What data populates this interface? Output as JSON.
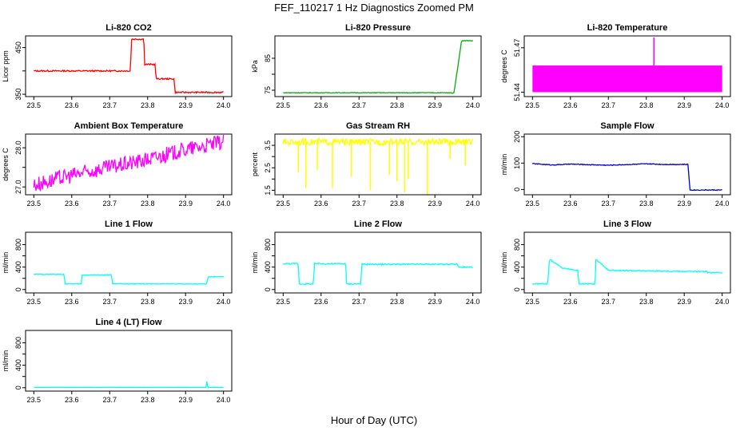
{
  "figure": {
    "title": "FEF_110217  1 Hz Diagnostics Zoomed PM",
    "xlabel": "Hour of Day (UTC)"
  },
  "chart_data": [
    {
      "type": "line",
      "title": "Li-820 CO2",
      "ylabel": "Licor ppm",
      "color": "#ff0000",
      "xlim": [
        23.5,
        24.0
      ],
      "ylim": [
        345,
        475
      ],
      "xticks": [
        "23.5",
        "23.6",
        "23.7",
        "23.8",
        "23.9",
        "24.0"
      ],
      "yticks": [
        350,
        400,
        450
      ],
      "ytick_labels": [
        "350",
        "",
        "450"
      ],
      "x": [
        23.5,
        23.755,
        23.757,
        23.79,
        23.792,
        23.82,
        23.822,
        23.87,
        23.872,
        24.0
      ],
      "y": [
        400,
        400,
        468,
        468,
        414,
        414,
        383,
        383,
        354,
        354
      ],
      "noise": 1.5
    },
    {
      "type": "line",
      "title": "Li-820 Pressure",
      "ylabel": "kPa",
      "color": "#00b000",
      "xlim": [
        23.5,
        24.0
      ],
      "ylim": [
        73,
        92
      ],
      "xticks": [
        "23.5",
        "23.6",
        "23.7",
        "23.8",
        "23.9",
        "24.0"
      ],
      "yticks": [
        75,
        80,
        85
      ],
      "ytick_labels": [
        "75",
        "",
        "85"
      ],
      "x": [
        23.5,
        23.93,
        23.95,
        23.96,
        23.965,
        23.97,
        24.0
      ],
      "y": [
        74.2,
        74.2,
        74.1,
        82,
        86,
        90.5,
        90.5
      ],
      "noise": 0.1
    },
    {
      "type": "band",
      "title": "Li-820 Temperature",
      "ylabel": "degrees C",
      "color": "#ff00ff",
      "xlim": [
        23.5,
        24.0
      ],
      "ylim": [
        51.437,
        51.478
      ],
      "xticks": [
        "23.5",
        "23.6",
        "23.7",
        "23.8",
        "23.9",
        "24.0"
      ],
      "yticks": [
        51.44,
        51.47
      ],
      "ytick_labels": [
        "51.44",
        "51.47"
      ],
      "band_low": 51.44,
      "band_high": 51.458,
      "spike_x": 23.82,
      "spike_y": 51.477
    },
    {
      "type": "line",
      "title": "Ambient Box Temperature",
      "ylabel": "degrees C",
      "color": "#ff00ff",
      "xlim": [
        23.5,
        24.0
      ],
      "ylim": [
        26.8,
        28.35
      ],
      "xticks": [
        "23.5",
        "23.6",
        "23.7",
        "23.8",
        "23.9",
        "24.0"
      ],
      "yticks": [
        27.0,
        27.5,
        28.0
      ],
      "ytick_labels": [
        "27.0",
        "",
        "28.0"
      ],
      "x": [
        23.5,
        23.6,
        23.7,
        23.8,
        23.9,
        24.0
      ],
      "y": [
        27.05,
        27.3,
        27.5,
        27.7,
        27.95,
        28.15
      ],
      "noise": 0.2
    },
    {
      "type": "line",
      "title": "Gas Stream RH",
      "ylabel": "percent",
      "color": "#ffff00",
      "xlim": [
        23.5,
        24.0
      ],
      "ylim": [
        1.3,
        4.0
      ],
      "xticks": [
        "23.5",
        "23.6",
        "23.7",
        "23.8",
        "23.9",
        "24.0"
      ],
      "yticks": [
        1.5,
        2.0,
        2.5,
        3.0,
        3.5
      ],
      "ytick_labels": [
        "1.5",
        "",
        "2.5",
        "",
        "3.5"
      ],
      "x": [
        23.5,
        24.0
      ],
      "y": [
        3.65,
        3.65
      ],
      "noise": 0.15,
      "dips": [
        [
          23.54,
          2.3
        ],
        [
          23.56,
          1.6
        ],
        [
          23.59,
          2.4
        ],
        [
          23.63,
          1.6
        ],
        [
          23.68,
          2.1
        ],
        [
          23.73,
          1.5
        ],
        [
          23.78,
          2.2
        ],
        [
          23.8,
          1.9
        ],
        [
          23.82,
          1.4
        ],
        [
          23.83,
          2.0
        ],
        [
          23.88,
          1.3
        ],
        [
          23.94,
          2.9
        ],
        [
          23.98,
          2.6
        ]
      ]
    },
    {
      "type": "line",
      "title": "Sample Flow",
      "ylabel": "ml/min",
      "color": "#0000cc",
      "xlim": [
        23.5,
        24.0
      ],
      "ylim": [
        -20,
        210
      ],
      "xticks": [
        "23.5",
        "23.6",
        "23.7",
        "23.8",
        "23.9",
        "24.0"
      ],
      "yticks": [
        0,
        100,
        200
      ],
      "ytick_labels": [
        "0",
        "100",
        "200"
      ],
      "x": [
        23.5,
        23.55,
        23.6,
        23.7,
        23.8,
        23.85,
        23.91,
        23.915,
        24.0
      ],
      "y": [
        98,
        93,
        96,
        92,
        97,
        95,
        95,
        -2,
        -2
      ],
      "noise": 1.5
    },
    {
      "type": "line",
      "title": "Line 1 Flow",
      "ylabel": "ml/min",
      "color": "#00ffff",
      "xlim": [
        23.5,
        24.0
      ],
      "ylim": [
        -60,
        1020
      ],
      "xticks": [
        "23.5",
        "23.6",
        "23.7",
        "23.8",
        "23.9",
        "24.0"
      ],
      "yticks": [
        0,
        200,
        400,
        600,
        800
      ],
      "ytick_labels": [
        "0",
        "",
        "400",
        "",
        "800"
      ],
      "x": [
        23.5,
        23.58,
        23.582,
        23.625,
        23.627,
        23.705,
        23.707,
        23.955,
        23.96,
        24.0
      ],
      "y": [
        270,
        270,
        100,
        100,
        260,
        260,
        100,
        100,
        230,
        230
      ],
      "noise": 6
    },
    {
      "type": "line",
      "title": "Line 2 Flow",
      "ylabel": "ml/min",
      "color": "#00ffff",
      "xlim": [
        23.5,
        24.0
      ],
      "ylim": [
        -60,
        1020
      ],
      "xticks": [
        "23.5",
        "23.6",
        "23.7",
        "23.8",
        "23.9",
        "24.0"
      ],
      "yticks": [
        0,
        200,
        400,
        600,
        800
      ],
      "ytick_labels": [
        "0",
        "",
        "400",
        "",
        "800"
      ],
      "x": [
        23.5,
        23.54,
        23.542,
        23.58,
        23.582,
        23.665,
        23.667,
        23.705,
        23.707,
        23.96,
        23.962,
        24.0
      ],
      "y": [
        460,
        460,
        100,
        100,
        460,
        460,
        100,
        100,
        450,
        450,
        400,
        400
      ],
      "noise": 12
    },
    {
      "type": "line",
      "title": "Line 3 Flow",
      "ylabel": "ml/min",
      "color": "#00ffff",
      "xlim": [
        23.5,
        24.0
      ],
      "ylim": [
        -60,
        1020
      ],
      "xticks": [
        "23.5",
        "23.6",
        "23.7",
        "23.8",
        "23.9",
        "24.0"
      ],
      "yticks": [
        0,
        200,
        400,
        600,
        800
      ],
      "ytick_labels": [
        "0",
        "",
        "400",
        "",
        "800"
      ],
      "x": [
        23.5,
        23.54,
        23.545,
        23.58,
        23.62,
        23.622,
        23.665,
        23.667,
        23.7,
        23.96,
        23.962,
        24.0
      ],
      "y": [
        100,
        100,
        540,
        380,
        340,
        100,
        100,
        540,
        340,
        320,
        300,
        300
      ],
      "noise": 10
    },
    {
      "type": "line",
      "title": "Line 4 (LT) Flow",
      "ylabel": "ml/min",
      "color": "#00ffff",
      "xlim": [
        23.5,
        24.0
      ],
      "ylim": [
        -60,
        1020
      ],
      "xticks": [
        "23.5",
        "23.6",
        "23.7",
        "23.8",
        "23.9",
        "24.0"
      ],
      "yticks": [
        0,
        200,
        400,
        600,
        800
      ],
      "ytick_labels": [
        "0",
        "",
        "400",
        "",
        "800"
      ],
      "x": [
        23.5,
        23.955,
        23.956,
        23.958,
        23.96,
        24.0
      ],
      "y": [
        5,
        5,
        140,
        20,
        5,
        5
      ],
      "noise": 2
    }
  ]
}
